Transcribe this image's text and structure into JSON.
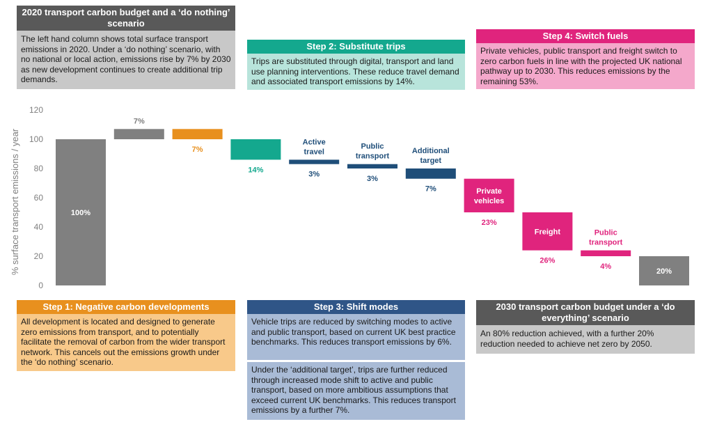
{
  "colors": {
    "grey": "#808080",
    "orange": "#E8901E",
    "teal": "#14A88E",
    "navy": "#1F4E79",
    "pink": "#E0247D",
    "teal_light": "#B8E4DB",
    "pink_light": "#F4A8CB",
    "orange_light": "#F8C98A",
    "navy_light": "#A9BBD6",
    "grey_light": "#C8C8C8",
    "navy_header": "#2F5587",
    "grey_header": "#595959"
  },
  "panels": {
    "do_nothing": {
      "title": "2020 transport carbon budget and a ‘do nothing’ scenario",
      "text": "The left hand column shows total surface transport emissions in 2020. Under a ‘do nothing’ scenario, with no national or local action, emissions rise by 7% by 2030 as new development continues to create additional trip demands."
    },
    "step2": {
      "title": "Step 2: Substitute trips",
      "text": "Trips are substituted through digital, transport and land use planning interventions. These reduce travel demand and associated transport emissions by 14%."
    },
    "step4": {
      "title": "Step 4: Switch fuels",
      "text": "Private vehicles, public transport and freight switch to zero carbon fuels in line with the projected UK national pathway up to 2030. This reduces emissions by the remaining 53%."
    },
    "step1": {
      "title": "Step 1: Negative carbon developments",
      "text": "All development is located and designed to generate zero emissions from transport, and to potentially facilitate the removal of carbon from the wider transport network. This cancels out the emissions growth under the ‘do nothing’ scenario."
    },
    "step3": {
      "title": "Step 3: Shift modes",
      "text1": "Vehicle trips are reduced by switching modes to active and public transport, based on current UK best practice benchmarks. This reduces transport emissions by 6%.",
      "text2": "Under the ‘additional target’, trips are further reduced through increased mode shift to active and public transport, based on more ambitious assumptions that exceed current UK benchmarks. This reduces transport emissions by a further 7%."
    },
    "do_everything": {
      "title": "2030 transport carbon budget under a ‘do everything’ scenario",
      "text": "An 80% reduction achieved, with a further 20% reduction needed to achieve net zero by 2050."
    }
  },
  "chart_data": {
    "type": "bar",
    "subtype": "waterfall",
    "ylabel": "% surface transport emissions / year",
    "ylim": [
      0,
      120
    ],
    "yticks": [
      0,
      20,
      40,
      60,
      80,
      100,
      120
    ],
    "grid": false,
    "bars": [
      {
        "start": 0,
        "end": 100,
        "label": "100%",
        "category": "",
        "color": "grey",
        "label_pos": "inside"
      },
      {
        "start": 100,
        "end": 107,
        "label": "7%",
        "category": "",
        "color": "grey",
        "label_pos": "above"
      },
      {
        "start": 107,
        "end": 100,
        "label": "7%",
        "category": "",
        "color": "orange",
        "label_pos": "below"
      },
      {
        "start": 100,
        "end": 86,
        "label": "14%",
        "category": "",
        "color": "teal",
        "label_pos": "below"
      },
      {
        "start": 86,
        "end": 83,
        "label": "3%",
        "category": "Active travel",
        "color": "navy",
        "label_pos": "below"
      },
      {
        "start": 83,
        "end": 80,
        "label": "3%",
        "category": "Public transport",
        "color": "navy",
        "label_pos": "below"
      },
      {
        "start": 80,
        "end": 73,
        "label": "7%",
        "category": "Additional target",
        "color": "navy",
        "label_pos": "below"
      },
      {
        "start": 73,
        "end": 50,
        "label": "23%",
        "category": "Private vehicles",
        "color": "pink",
        "label_pos": "below",
        "category_inside": true
      },
      {
        "start": 50,
        "end": 24,
        "label": "26%",
        "category": "Freight",
        "color": "pink",
        "label_pos": "below",
        "category_inside": true
      },
      {
        "start": 24,
        "end": 20,
        "label": "4%",
        "category": "Public transport",
        "color": "pink",
        "label_pos": "below"
      },
      {
        "start": 0,
        "end": 20,
        "label": "20%",
        "category": "",
        "color": "grey",
        "label_pos": "inside"
      }
    ]
  }
}
